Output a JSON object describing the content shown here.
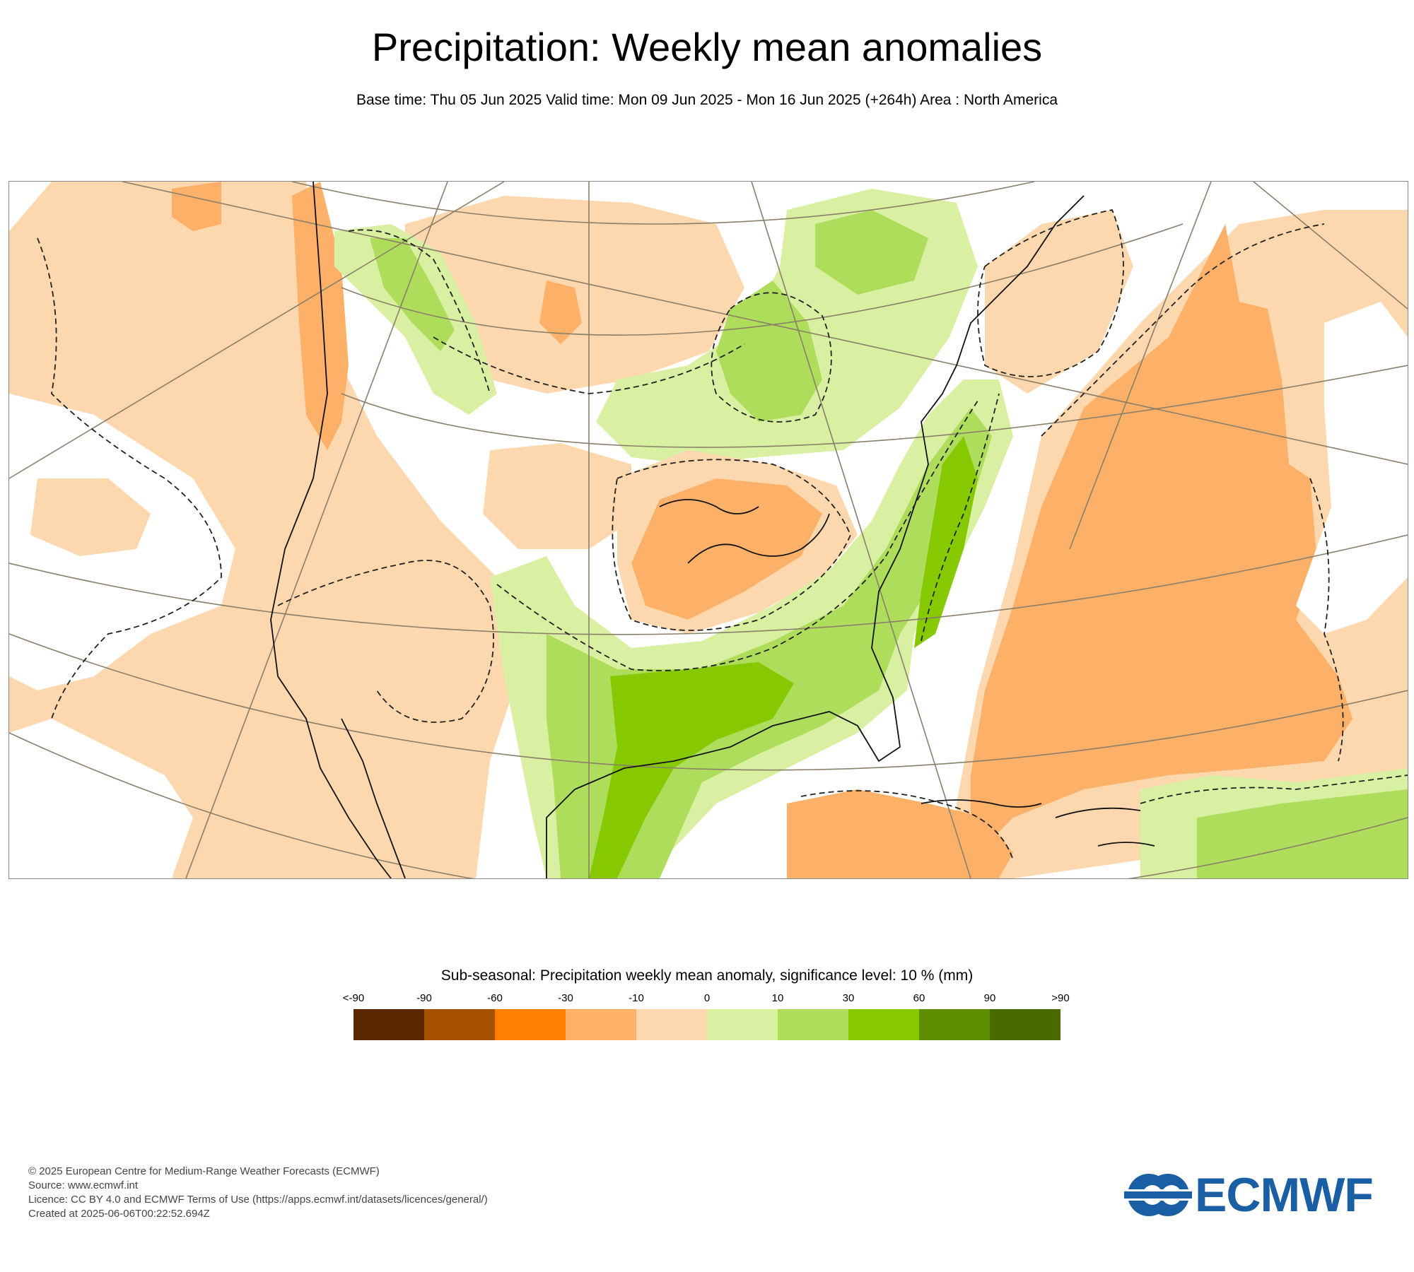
{
  "header": {
    "title": "Precipitation: Weekly mean anomalies",
    "subtitle": "Base time: Thu 05 Jun 2025 Valid time: Mon 09 Jun 2025 - Mon 16 Jun 2025 (+264h) Area : North America"
  },
  "map": {
    "area": "North America",
    "colors": {
      "neutral": "#ffffff",
      "dry_light": "#fdd7ae",
      "dry_medium": "#fdb068",
      "dry_strong": "#fe8001",
      "wet_light": "#d9f0a3",
      "wet_medium": "#addd5a",
      "wet_strong": "#86c900"
    }
  },
  "legend": {
    "title": "Sub-seasonal: Precipitation weekly mean anomaly, significance level: 10 % (mm)",
    "labels": [
      "<-90",
      "-90",
      "-60",
      "-30",
      "-10",
      "0",
      "10",
      "30",
      "60",
      "90",
      ">90"
    ],
    "colors": [
      "#5a2800",
      "#a65200",
      "#fe8001",
      "#fdb068",
      "#fdd7ae",
      "#d9f0a3",
      "#addd5a",
      "#86c900",
      "#5f8f00",
      "#4a6a00"
    ]
  },
  "footer": {
    "line1": "© 2025 European Centre for Medium-Range Weather Forecasts (ECMWF)",
    "line2": "Source: www.ecmwf.int",
    "line3": "Licence: CC BY 4.0 and ECMWF Terms of Use (https://apps.ecmwf.int/datasets/licences/general/)",
    "line4": "Created at 2025-06-06T00:22:52.694Z"
  },
  "logo": {
    "text": "ECMWF",
    "color": "#1a5fa3"
  }
}
